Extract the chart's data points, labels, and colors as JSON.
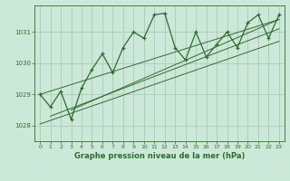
{
  "title": "Graphe pression niveau de la mer (hPa)",
  "bg_color": "#cce8d8",
  "grid_color": "#aaccbb",
  "line_color": "#2d6e2d",
  "ylim": [
    1027.5,
    1031.85
  ],
  "xlim": [
    -0.5,
    23.5
  ],
  "yticks": [
    1028,
    1029,
    1030,
    1031
  ],
  "xticks": [
    0,
    1,
    2,
    3,
    4,
    5,
    6,
    7,
    8,
    9,
    10,
    11,
    12,
    13,
    14,
    15,
    16,
    17,
    18,
    19,
    20,
    21,
    22,
    23
  ],
  "main_data": [
    1029.0,
    1028.6,
    1029.1,
    1028.2,
    1029.2,
    1029.8,
    1030.3,
    1029.7,
    1030.5,
    1031.0,
    1030.8,
    1031.55,
    1031.6,
    1030.5,
    1030.1,
    1031.0,
    1030.2,
    1030.6,
    1031.0,
    1030.5,
    1031.3,
    1031.55,
    1030.8,
    1031.55
  ],
  "trend1_x": [
    0,
    23
  ],
  "trend1_y": [
    1029.0,
    1031.4
  ],
  "trend2_x": [
    0,
    23
  ],
  "trend2_y": [
    1028.05,
    1030.7
  ],
  "trend3_x": [
    1,
    23
  ],
  "trend3_y": [
    1028.3,
    1031.1
  ],
  "trend4_x": [
    3,
    23
  ],
  "trend4_y": [
    1028.5,
    1031.4
  ]
}
